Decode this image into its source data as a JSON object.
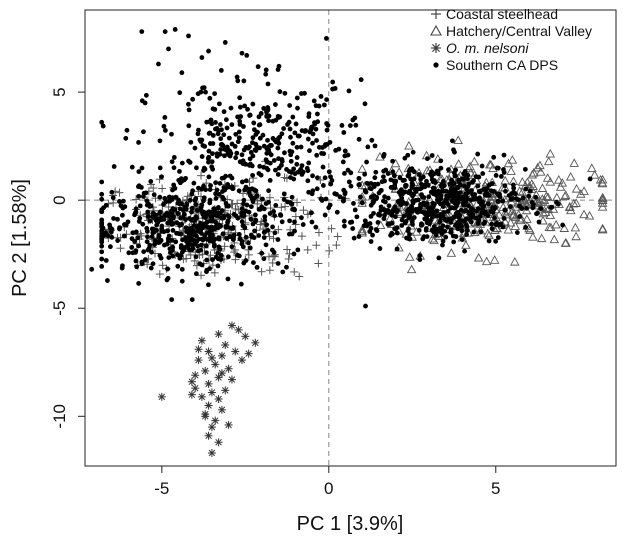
{
  "chart_data": {
    "type": "scatter",
    "title": "",
    "xlabel": "PC 1 [3.9%]",
    "ylabel": "PC 2 [1.58%]",
    "xlim": [
      -7.3,
      8.6
    ],
    "ylim": [
      -12.3,
      8.8
    ],
    "xticks": [
      -5,
      0,
      5
    ],
    "yticks": [
      5,
      0,
      -5,
      -10
    ],
    "xtick_labels": [
      "-5",
      "0",
      "5"
    ],
    "ytick_labels": [
      "5",
      "0",
      "-5",
      "-10"
    ],
    "reference_lines": {
      "x": 0,
      "y": 0
    },
    "grid": false,
    "legend_position": "top-right",
    "series": [
      {
        "name": "Coastal steelhead",
        "marker": "plus",
        "color": "#555555",
        "cluster": {
          "center": [
            -3.5,
            -1.2
          ],
          "spread": [
            1.6,
            1.1
          ],
          "x_range": [
            -6.6,
            0.5
          ],
          "y_range": [
            -4.3,
            1.8
          ],
          "approx_count": 260
        }
      },
      {
        "name": "Hatchery/Central Valley",
        "marker": "triangle",
        "color": "#555555",
        "cluster": {
          "center": [
            4.6,
            -0.2
          ],
          "spread": [
            1.8,
            1.0
          ],
          "x_range": [
            1.0,
            8.2
          ],
          "y_range": [
            -4.1,
            3.2
          ],
          "approx_count": 330
        }
      },
      {
        "name": "O. m. nelsoni",
        "marker": "asterisk",
        "color": "#333333",
        "points": [
          [
            -3.8,
            -6.5
          ],
          [
            -3.3,
            -6.2
          ],
          [
            -2.9,
            -5.8
          ],
          [
            -2.5,
            -6.3
          ],
          [
            -3.1,
            -6.7
          ],
          [
            -2.2,
            -6.6
          ],
          [
            -3.6,
            -7.0
          ],
          [
            -3.2,
            -7.2
          ],
          [
            -2.8,
            -7.0
          ],
          [
            -3.9,
            -7.4
          ],
          [
            -3.4,
            -7.6
          ],
          [
            -2.6,
            -7.4
          ],
          [
            -3.0,
            -7.8
          ],
          [
            -3.7,
            -7.9
          ],
          [
            -4.0,
            -8.1
          ],
          [
            -3.3,
            -8.2
          ],
          [
            -2.9,
            -8.3
          ],
          [
            -3.6,
            -8.5
          ],
          [
            -4.0,
            -8.7
          ],
          [
            -3.5,
            -8.9
          ],
          [
            -3.1,
            -8.8
          ],
          [
            -3.8,
            -9.1
          ],
          [
            -3.3,
            -9.2
          ],
          [
            -3.6,
            -9.5
          ],
          [
            -3.2,
            -9.7
          ],
          [
            -3.7,
            -9.9
          ],
          [
            -3.4,
            -10.2
          ],
          [
            -3.5,
            -10.5
          ],
          [
            -3.0,
            -10.4
          ],
          [
            -3.6,
            -10.9
          ],
          [
            -3.3,
            -11.2
          ],
          [
            -3.5,
            -11.7
          ],
          [
            -5.0,
            -9.1
          ],
          [
            -4.1,
            -9.0
          ],
          [
            -2.7,
            -6.0
          ],
          [
            -3.9,
            -6.9
          ],
          [
            -3.5,
            -7.3
          ],
          [
            -2.4,
            -7.1
          ],
          [
            -4.1,
            -8.4
          ],
          [
            -3.2,
            -8.0
          ],
          [
            -3.7,
            -10.0
          ]
        ]
      },
      {
        "name": "Southern CA DPS",
        "marker": "dot",
        "color": "#000000",
        "clusters": [
          {
            "center": [
              -4.2,
              -1.3
            ],
            "spread": [
              1.5,
              1.0
            ],
            "approx_count": 500
          },
          {
            "center": [
              -2.0,
              2.2
            ],
            "spread": [
              1.6,
              1.6
            ],
            "approx_count": 420
          },
          {
            "center": [
              3.2,
              -0.1
            ],
            "spread": [
              1.4,
              0.9
            ],
            "approx_count": 600
          }
        ],
        "outliers": [
          [
            -5.6,
            7.8
          ],
          [
            -4.9,
            7.8
          ],
          [
            -4.2,
            7.6
          ],
          [
            -4.6,
            7.9
          ],
          [
            -3.1,
            7.3
          ],
          [
            -3.8,
            6.6
          ],
          [
            -5.1,
            6.3
          ],
          [
            -2.6,
            6.8
          ],
          [
            -7.1,
            -3.2
          ],
          [
            1.1,
            -4.9
          ],
          [
            -5.5,
            4.5
          ],
          [
            -4.4,
            5.9
          ],
          [
            -3.6,
            6.9
          ],
          [
            -4.8,
            7.0
          ]
        ]
      }
    ]
  }
}
